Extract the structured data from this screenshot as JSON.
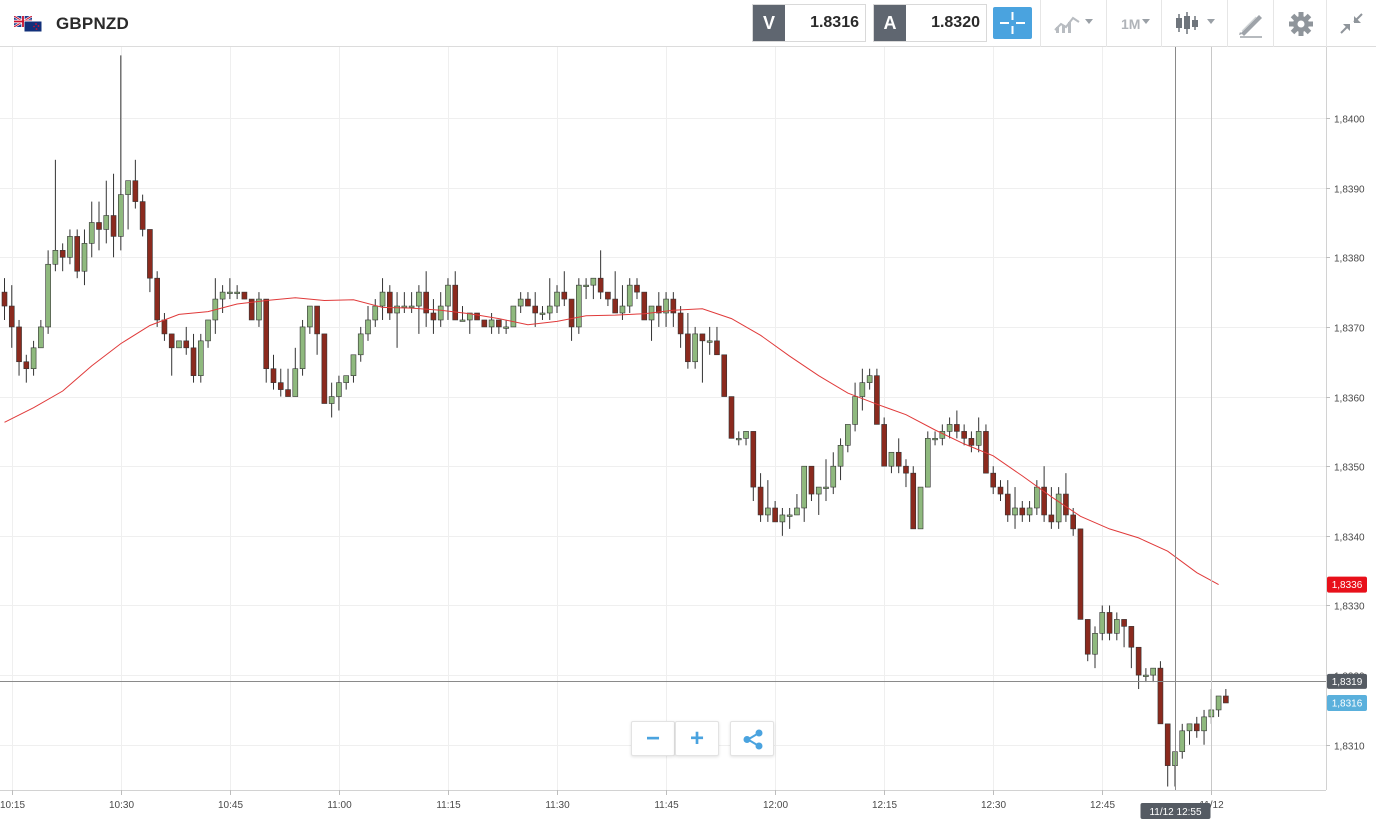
{
  "header": {
    "symbol": "GBPNZD",
    "sell_tag": "V",
    "sell_price": "1.8316",
    "buy_tag": "A",
    "buy_price": "1.8320",
    "interval": "1M"
  },
  "controls": {
    "zoom_out": "−",
    "zoom_in": "+"
  },
  "colors": {
    "up_candle": "#8fb97e",
    "down_candle": "#8b2a1e",
    "moving_average": "#e03a3a",
    "accent": "#4aa3df",
    "ma_label_bg": "#e8101a",
    "cursor_label_bg": "#555b63",
    "last_label_bg": "#5ab0dc"
  },
  "chart_data": {
    "type": "candlestick",
    "symbol": "GBPNZD",
    "y_axis": {
      "ticks": [
        "1,8310",
        "1,8320",
        "1,8330",
        "1,8340",
        "1,8350",
        "1,8360",
        "1,8370",
        "1,8380",
        "1,8390",
        "1,8400"
      ],
      "range": [
        1.83035,
        1.84102
      ]
    },
    "x_axis": {
      "ticks": [
        "10:15",
        "10:30",
        "10:45",
        "11:00",
        "11:15",
        "11:30",
        "11:45",
        "12:00",
        "12:15",
        "12:30",
        "12:45",
        "11/12"
      ],
      "start": "10:14",
      "interval_minutes": 1
    },
    "labels": {
      "moving_average_value": "1,8336",
      "cursor_price": "1,8319",
      "last_price": "1,8316",
      "cursor_time": "11/12 12:55"
    },
    "cursor": {
      "time": "12:55",
      "price": 1.83191
    },
    "marker_time": "13:00",
    "candles": [
      [
        1.8375,
        1.8377,
        1.8371,
        1.8373
      ],
      [
        1.8373,
        1.8376,
        1.8367,
        1.837
      ],
      [
        1.837,
        1.8371,
        1.8363,
        1.8365
      ],
      [
        1.8365,
        1.8366,
        1.8362,
        1.8364
      ],
      [
        1.8364,
        1.8368,
        1.8363,
        1.8367
      ],
      [
        1.8367,
        1.8371,
        1.8367,
        1.837
      ],
      [
        1.837,
        1.8381,
        1.8369,
        1.8379
      ],
      [
        1.8379,
        1.8394,
        1.8378,
        1.8381
      ],
      [
        1.8381,
        1.8382,
        1.8378,
        1.838
      ],
      [
        1.838,
        1.8384,
        1.8379,
        1.8383
      ],
      [
        1.8383,
        1.8384,
        1.8377,
        1.8378
      ],
      [
        1.8378,
        1.8384,
        1.8376,
        1.8382
      ],
      [
        1.8382,
        1.8388,
        1.838,
        1.8385
      ],
      [
        1.8385,
        1.8388,
        1.8381,
        1.8384
      ],
      [
        1.8384,
        1.8391,
        1.8382,
        1.8386
      ],
      [
        1.8386,
        1.8392,
        1.838,
        1.8383
      ],
      [
        1.8383,
        1.8409,
        1.8381,
        1.8389
      ],
      [
        1.8389,
        1.8391,
        1.8384,
        1.8391
      ],
      [
        1.8391,
        1.8394,
        1.8387,
        1.8388
      ],
      [
        1.8388,
        1.8389,
        1.8383,
        1.8384
      ],
      [
        1.8384,
        1.8384,
        1.8375,
        1.8377
      ],
      [
        1.8377,
        1.8378,
        1.837,
        1.8371
      ],
      [
        1.8371,
        1.8372,
        1.8368,
        1.8369
      ],
      [
        1.8369,
        1.8369,
        1.8363,
        1.8367
      ],
      [
        1.8367,
        1.8368,
        1.8367,
        1.8368
      ],
      [
        1.8368,
        1.837,
        1.8366,
        1.8367
      ],
      [
        1.8367,
        1.8369,
        1.8362,
        1.8363
      ],
      [
        1.8363,
        1.8369,
        1.8362,
        1.8368
      ],
      [
        1.8368,
        1.8371,
        1.8367,
        1.8371
      ],
      [
        1.8371,
        1.8377,
        1.8369,
        1.8374
      ],
      [
        1.8374,
        1.8376,
        1.8372,
        1.8375
      ],
      [
        1.8375,
        1.8377,
        1.8374,
        1.8375
      ],
      [
        1.8375,
        1.8376,
        1.8374,
        1.8375
      ],
      [
        1.8375,
        1.8375,
        1.8374,
        1.8374
      ],
      [
        1.8374,
        1.8374,
        1.8371,
        1.8371
      ],
      [
        1.8371,
        1.8375,
        1.837,
        1.8374
      ],
      [
        1.8374,
        1.8374,
        1.8362,
        1.8364
      ],
      [
        1.8364,
        1.8366,
        1.8361,
        1.8362
      ],
      [
        1.8362,
        1.8364,
        1.836,
        1.8361
      ],
      [
        1.8361,
        1.8364,
        1.836,
        1.836
      ],
      [
        1.836,
        1.8367,
        1.836,
        1.8364
      ],
      [
        1.8364,
        1.8371,
        1.8363,
        1.837
      ],
      [
        1.837,
        1.8373,
        1.8369,
        1.8373
      ],
      [
        1.8373,
        1.8373,
        1.8366,
        1.8369
      ],
      [
        1.8369,
        1.8369,
        1.8359,
        1.8359
      ],
      [
        1.8359,
        1.8362,
        1.8357,
        1.836
      ],
      [
        1.836,
        1.8363,
        1.8358,
        1.8362
      ],
      [
        1.8362,
        1.8363,
        1.8361,
        1.8363
      ],
      [
        1.8363,
        1.8366,
        1.8362,
        1.8366
      ],
      [
        1.8366,
        1.837,
        1.8365,
        1.8369
      ],
      [
        1.8369,
        1.8373,
        1.8368,
        1.8371
      ],
      [
        1.8371,
        1.8374,
        1.837,
        1.8373
      ],
      [
        1.8373,
        1.8377,
        1.8371,
        1.8375
      ],
      [
        1.8375,
        1.8376,
        1.8371,
        1.8372
      ],
      [
        1.8372,
        1.8375,
        1.8367,
        1.8373
      ],
      [
        1.8373,
        1.8375,
        1.8372,
        1.8373
      ],
      [
        1.8373,
        1.8375,
        1.8372,
        1.8373
      ],
      [
        1.8373,
        1.8376,
        1.8369,
        1.8375
      ],
      [
        1.8375,
        1.8378,
        1.837,
        1.8372
      ],
      [
        1.8372,
        1.8374,
        1.8369,
        1.8371
      ],
      [
        1.8371,
        1.8375,
        1.837,
        1.8373
      ],
      [
        1.8373,
        1.8377,
        1.8371,
        1.8376
      ],
      [
        1.8376,
        1.8378,
        1.8371,
        1.8371
      ],
      [
        1.8371,
        1.8373,
        1.8371,
        1.8371
      ],
      [
        1.8371,
        1.8372,
        1.8369,
        1.8372
      ],
      [
        1.8372,
        1.8372,
        1.8371,
        1.8371
      ],
      [
        1.8371,
        1.8371,
        1.837,
        1.837
      ],
      [
        1.837,
        1.8372,
        1.8369,
        1.8371
      ],
      [
        1.8371,
        1.8371,
        1.8369,
        1.837
      ],
      [
        1.837,
        1.8371,
        1.8369,
        1.837
      ],
      [
        1.837,
        1.8373,
        1.837,
        1.8373
      ],
      [
        1.8373,
        1.8375,
        1.8372,
        1.8374
      ],
      [
        1.8374,
        1.8375,
        1.8373,
        1.8373
      ],
      [
        1.8373,
        1.8375,
        1.837,
        1.8372
      ],
      [
        1.8372,
        1.8373,
        1.8371,
        1.8372
      ],
      [
        1.8372,
        1.8377,
        1.8371,
        1.8373
      ],
      [
        1.8373,
        1.8376,
        1.8372,
        1.8375
      ],
      [
        1.8375,
        1.8378,
        1.8373,
        1.8374
      ],
      [
        1.8374,
        1.8374,
        1.8368,
        1.837
      ],
      [
        1.837,
        1.8377,
        1.8369,
        1.8376
      ],
      [
        1.8376,
        1.8377,
        1.8374,
        1.8376
      ],
      [
        1.8376,
        1.8377,
        1.8374,
        1.8377
      ],
      [
        1.8377,
        1.8381,
        1.8374,
        1.8375
      ],
      [
        1.8375,
        1.8375,
        1.8373,
        1.8374
      ],
      [
        1.8374,
        1.8378,
        1.8372,
        1.8372
      ],
      [
        1.8372,
        1.8376,
        1.8371,
        1.8373
      ],
      [
        1.8373,
        1.8377,
        1.8372,
        1.8376
      ],
      [
        1.8376,
        1.8377,
        1.8374,
        1.8375
      ],
      [
        1.8375,
        1.8375,
        1.8371,
        1.8371
      ],
      [
        1.8371,
        1.8373,
        1.8368,
        1.8373
      ],
      [
        1.8373,
        1.8375,
        1.837,
        1.8372
      ],
      [
        1.8372,
        1.8375,
        1.837,
        1.8374
      ],
      [
        1.8374,
        1.8375,
        1.837,
        1.8372
      ],
      [
        1.8372,
        1.8373,
        1.8367,
        1.8369
      ],
      [
        1.8369,
        1.8372,
        1.8364,
        1.8365
      ],
      [
        1.8365,
        1.837,
        1.8364,
        1.8369
      ],
      [
        1.8369,
        1.8369,
        1.8362,
        1.8368
      ],
      [
        1.8368,
        1.837,
        1.8366,
        1.8368
      ],
      [
        1.8368,
        1.837,
        1.8366,
        1.8366
      ],
      [
        1.8366,
        1.8366,
        1.836,
        1.836
      ],
      [
        1.836,
        1.836,
        1.8354,
        1.8354
      ],
      [
        1.8354,
        1.8355,
        1.8353,
        1.8354
      ],
      [
        1.8354,
        1.8355,
        1.8353,
        1.8355
      ],
      [
        1.8355,
        1.8355,
        1.8345,
        1.8347
      ],
      [
        1.8347,
        1.8349,
        1.8342,
        1.8343
      ],
      [
        1.8343,
        1.8348,
        1.8342,
        1.8344
      ],
      [
        1.8344,
        1.8345,
        1.8342,
        1.8342
      ],
      [
        1.8342,
        1.8344,
        1.834,
        1.8343
      ],
      [
        1.8343,
        1.8344,
        1.8341,
        1.8343
      ],
      [
        1.8343,
        1.8346,
        1.8343,
        1.8344
      ],
      [
        1.8344,
        1.835,
        1.8342,
        1.835
      ],
      [
        1.835,
        1.835,
        1.8345,
        1.8346
      ],
      [
        1.8346,
        1.8347,
        1.8343,
        1.8347
      ],
      [
        1.8347,
        1.8351,
        1.8345,
        1.8347
      ],
      [
        1.8347,
        1.8352,
        1.8346,
        1.835
      ],
      [
        1.835,
        1.8354,
        1.8348,
        1.8353
      ],
      [
        1.8353,
        1.8356,
        1.8352,
        1.8356
      ],
      [
        1.8356,
        1.8362,
        1.8355,
        1.836
      ],
      [
        1.836,
        1.8364,
        1.8358,
        1.8362
      ],
      [
        1.8362,
        1.8364,
        1.8361,
        1.8363
      ],
      [
        1.8363,
        1.8364,
        1.8356,
        1.8356
      ],
      [
        1.8356,
        1.8357,
        1.835,
        1.835
      ],
      [
        1.835,
        1.8352,
        1.8349,
        1.8352
      ],
      [
        1.8352,
        1.8354,
        1.8349,
        1.835
      ],
      [
        1.835,
        1.8351,
        1.8347,
        1.8349
      ],
      [
        1.8349,
        1.835,
        1.8341,
        1.8341
      ],
      [
        1.8341,
        1.8347,
        1.8341,
        1.8347
      ],
      [
        1.8347,
        1.8355,
        1.8347,
        1.8354
      ],
      [
        1.8354,
        1.8355,
        1.8353,
        1.8354
      ],
      [
        1.8354,
        1.8356,
        1.8353,
        1.8355
      ],
      [
        1.8355,
        1.8357,
        1.8354,
        1.8356
      ],
      [
        1.8356,
        1.8358,
        1.8354,
        1.8355
      ],
      [
        1.8355,
        1.8356,
        1.8353,
        1.8354
      ],
      [
        1.8354,
        1.8355,
        1.8352,
        1.8353
      ],
      [
        1.8353,
        1.8357,
        1.8352,
        1.8355
      ],
      [
        1.8355,
        1.8356,
        1.8349,
        1.8349
      ],
      [
        1.8349,
        1.835,
        1.8346,
        1.8347
      ],
      [
        1.8347,
        1.8348,
        1.8345,
        1.8346
      ],
      [
        1.8346,
        1.8348,
        1.8342,
        1.8343
      ],
      [
        1.8343,
        1.8347,
        1.8341,
        1.8344
      ],
      [
        1.8344,
        1.8345,
        1.8342,
        1.8343
      ],
      [
        1.8343,
        1.8345,
        1.8342,
        1.8344
      ],
      [
        1.8344,
        1.8348,
        1.8343,
        1.8347
      ],
      [
        1.8347,
        1.835,
        1.8342,
        1.8343
      ],
      [
        1.8343,
        1.8347,
        1.8341,
        1.8342
      ],
      [
        1.8342,
        1.8347,
        1.8341,
        1.8346
      ],
      [
        1.8346,
        1.8349,
        1.8342,
        1.8343
      ],
      [
        1.8343,
        1.8344,
        1.834,
        1.8341
      ],
      [
        1.8341,
        1.8341,
        1.8328,
        1.8328
      ],
      [
        1.8328,
        1.8328,
        1.8322,
        1.8323
      ],
      [
        1.8323,
        1.8327,
        1.8321,
        1.8326
      ],
      [
        1.8326,
        1.833,
        1.8325,
        1.8329
      ],
      [
        1.8329,
        1.833,
        1.8325,
        1.8326
      ],
      [
        1.8326,
        1.8329,
        1.8325,
        1.8328
      ],
      [
        1.8328,
        1.8328,
        1.8324,
        1.8327
      ],
      [
        1.8327,
        1.8327,
        1.8321,
        1.8324
      ],
      [
        1.8324,
        1.8324,
        1.8318,
        1.832
      ],
      [
        1.832,
        1.8321,
        1.8319,
        1.832
      ],
      [
        1.832,
        1.8321,
        1.8319,
        1.8321
      ],
      [
        1.8321,
        1.8322,
        1.8313,
        1.8313
      ],
      [
        1.8313,
        1.8313,
        1.8304,
        1.8307
      ],
      [
        1.8307,
        1.8309,
        1.8304,
        1.8309
      ],
      [
        1.8309,
        1.8313,
        1.8308,
        1.8312
      ],
      [
        1.8312,
        1.8313,
        1.831,
        1.8313
      ],
      [
        1.8313,
        1.8314,
        1.8311,
        1.8312
      ],
      [
        1.8312,
        1.8315,
        1.831,
        1.8314
      ],
      [
        1.8314,
        1.8318,
        1.8313,
        1.8315
      ],
      [
        1.8315,
        1.8317,
        1.8314,
        1.8317
      ],
      [
        1.8317,
        1.8318,
        1.8316,
        1.8316
      ]
    ],
    "moving_average": [
      [
        1.83563,
        10.14
      ],
      [
        1.83584,
        10.18
      ],
      [
        1.83608,
        10.22
      ],
      [
        1.83644,
        10.26
      ],
      [
        1.83676,
        10.3
      ],
      [
        1.83702,
        10.34
      ],
      [
        1.83718,
        10.38
      ],
      [
        1.83722,
        10.42
      ],
      [
        1.83733,
        10.46
      ],
      [
        1.83738,
        10.5
      ],
      [
        1.83742,
        10.54
      ],
      [
        1.83738,
        10.58
      ],
      [
        1.83739,
        11.02
      ],
      [
        1.83728,
        11.06
      ],
      [
        1.83727,
        11.1
      ],
      [
        1.83724,
        11.14
      ],
      [
        1.83719,
        11.18
      ],
      [
        1.83712,
        11.22
      ],
      [
        1.83703,
        11.26
      ],
      [
        1.83708,
        11.3
      ],
      [
        1.83716,
        11.34
      ],
      [
        1.83717,
        11.38
      ],
      [
        1.83719,
        11.42
      ],
      [
        1.83724,
        11.46
      ],
      [
        1.83726,
        11.5
      ],
      [
        1.83712,
        11.54
      ],
      [
        1.83688,
        11.58
      ],
      [
        1.83658,
        12.02
      ],
      [
        1.8363,
        12.06
      ],
      [
        1.83605,
        12.1
      ],
      [
        1.83589,
        12.14
      ],
      [
        1.83574,
        12.18
      ],
      [
        1.83552,
        12.22
      ],
      [
        1.83532,
        12.26
      ],
      [
        1.83515,
        12.3
      ],
      [
        1.83486,
        12.34
      ],
      [
        1.83456,
        12.38
      ],
      [
        1.83428,
        12.42
      ],
      [
        1.8341,
        12.46
      ],
      [
        1.83397,
        12.5
      ],
      [
        1.83378,
        12.54
      ],
      [
        1.83347,
        12.58
      ],
      [
        1.8333,
        13.01
      ]
    ]
  }
}
